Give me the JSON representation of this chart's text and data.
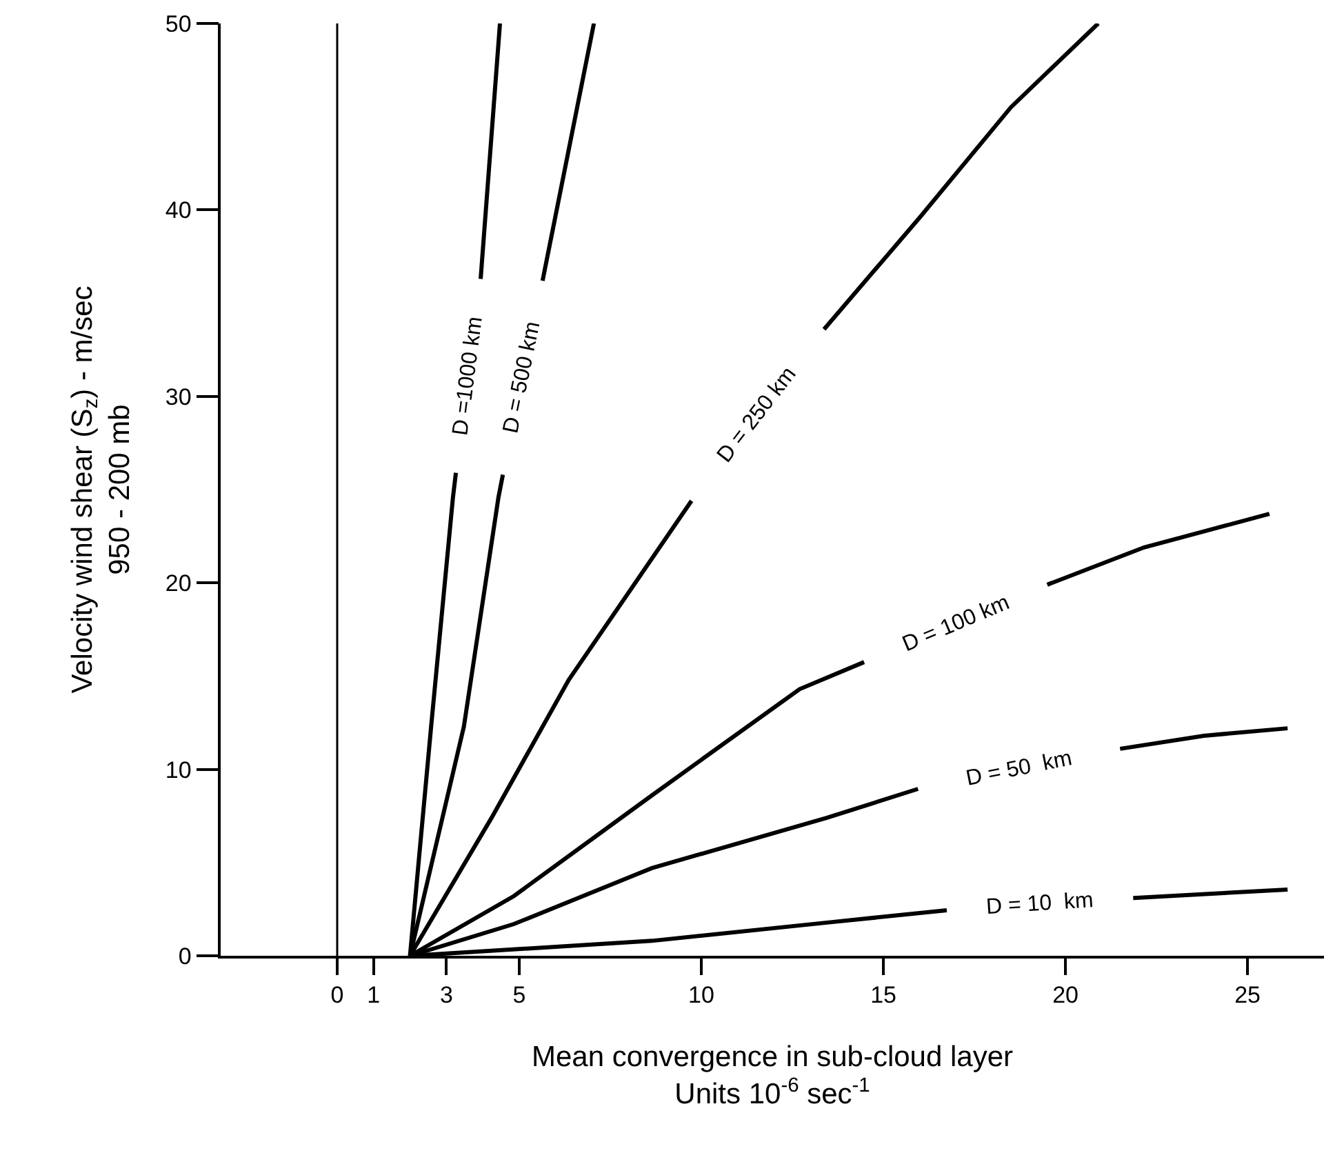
{
  "chart_data": {
    "type": "line",
    "xlabel": "Mean convergence in sub-cloud layer\nUnits 10$^{-6}$ sec$^{-1}$",
    "ylabel": "Velocity wind shear (S$_{z}$) - m/sec\n950 - 200 mb",
    "xlim": [
      -3.2,
      27.1
    ],
    "ylim": [
      0,
      50
    ],
    "xticks": [
      0,
      1,
      3,
      5,
      10,
      15,
      20,
      25
    ],
    "yticks": [
      0,
      10,
      20,
      30,
      40,
      50
    ],
    "ref_lines": [
      {
        "axis": "x",
        "value": 0,
        "color": "#000000"
      }
    ],
    "marker": "none",
    "line_style": "solid",
    "series": [
      {
        "name": "D =1000 km",
        "color": "#000000",
        "x": [
          2.0,
          2.58,
          3.18,
          3.26,
          3.6,
          3.94,
          4.47
        ],
        "values": [
          0,
          12.3,
          24.6,
          25.9,
          null,
          36.3,
          50
        ]
      },
      {
        "name": "D = 500 km",
        "color": "#000000",
        "x": [
          2.0,
          3.48,
          4.43,
          4.55,
          5.1,
          5.64,
          7.05
        ],
        "values": [
          0,
          12.3,
          24.6,
          25.8,
          null,
          36.2,
          50
        ]
      },
      {
        "name": "D = 250 km",
        "color": "#000000",
        "x": [
          2.0,
          4.24,
          6.36,
          9.73,
          11.5,
          13.37,
          16.0,
          18.5,
          20.9
        ],
        "values": [
          0,
          7.4,
          14.8,
          24.4,
          null,
          33.6,
          39.6,
          45.5,
          50
        ]
      },
      {
        "name": "D = 100 km",
        "color": "#000000",
        "x": [
          2.0,
          4.85,
          8.64,
          12.7,
          14.47,
          17.0,
          19.5,
          22.16,
          25.6
        ],
        "values": [
          0,
          3.2,
          8.6,
          14.3,
          15.75,
          null,
          19.9,
          21.9,
          23.7
        ]
      },
      {
        "name": "D = 50  km",
        "color": "#000000",
        "x": [
          2.0,
          4.85,
          8.64,
          13.45,
          15.95,
          18.7,
          21.5,
          23.8,
          26.1
        ],
        "values": [
          0,
          1.7,
          4.7,
          7.4,
          8.95,
          null,
          11.1,
          11.8,
          12.2
        ]
      },
      {
        "name": "D = 10  km",
        "color": "#000000",
        "x": [
          2.0,
          8.64,
          13.45,
          16.74,
          19.3,
          21.86,
          26.1
        ],
        "values": [
          0,
          0.8,
          1.78,
          2.44,
          null,
          3.1,
          3.55
        ]
      }
    ]
  }
}
